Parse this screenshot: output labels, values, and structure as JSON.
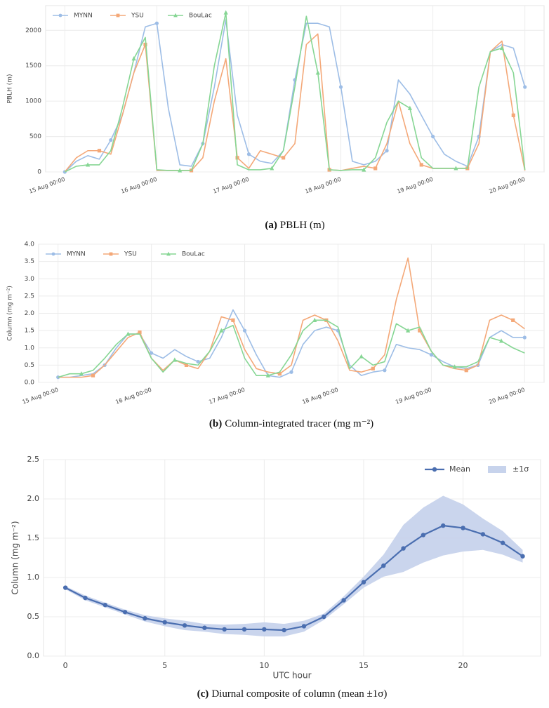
{
  "chart_data": [
    {
      "type": "line",
      "caption": "(a)",
      "caption_text": "PBLH (m)",
      "y_label": "PBLH (m)",
      "x": [
        "15 Aug 00:00",
        "15 Aug 03:00",
        "15 Aug 06:00",
        "15 Aug 09:00",
        "15 Aug 12:00",
        "15 Aug 15:00",
        "15 Aug 18:00",
        "15 Aug 21:00",
        "16 Aug 00:00",
        "16 Aug 03:00",
        "16 Aug 06:00",
        "16 Aug 09:00",
        "16 Aug 12:00",
        "16 Aug 15:00",
        "16 Aug 18:00",
        "16 Aug 21:00",
        "17 Aug 00:00",
        "17 Aug 03:00",
        "17 Aug 06:00",
        "17 Aug 09:00",
        "17 Aug 12:00",
        "17 Aug 15:00",
        "17 Aug 18:00",
        "17 Aug 21:00",
        "18 Aug 00:00",
        "18 Aug 03:00",
        "18 Aug 06:00",
        "18 Aug 09:00",
        "18 Aug 12:00",
        "18 Aug 15:00",
        "18 Aug 18:00",
        "18 Aug 21:00",
        "19 Aug 00:00",
        "19 Aug 03:00",
        "19 Aug 06:00",
        "19 Aug 09:00",
        "19 Aug 12:00",
        "19 Aug 15:00",
        "19 Aug 18:00",
        "19 Aug 21:00",
        "20 Aug 00:00"
      ],
      "xlim": [
        "14 Aug 19:00",
        "20 Aug 05:00"
      ],
      "xticks": [
        "15 Aug 00:00",
        "16 Aug 00:00",
        "17 Aug 00:00",
        "18 Aug 00:00",
        "19 Aug 00:00",
        "20 Aug 00:00"
      ],
      "ylim": [
        0,
        2350
      ],
      "yticks": [
        0,
        500,
        1000,
        1500,
        2000
      ],
      "grid": true,
      "legend": "upper left",
      "series": [
        {
          "name": "MYNN",
          "color": "#9dbde6",
          "marker": "circle",
          "values": [
            0,
            150,
            230,
            180,
            450,
            800,
            1400,
            2050,
            2100,
            900,
            100,
            80,
            400,
            1200,
            2150,
            800,
            250,
            150,
            120,
            300,
            1300,
            2100,
            2100,
            2050,
            1200,
            150,
            100,
            150,
            300,
            1300,
            1100,
            800,
            500,
            250,
            150,
            80,
            500,
            1700,
            1800,
            1750,
            1200
          ]
        },
        {
          "name": "YSU",
          "color": "#f4a878",
          "marker": "square",
          "values": [
            0,
            200,
            300,
            300,
            250,
            800,
            1400,
            1800,
            20,
            20,
            20,
            20,
            200,
            1000,
            1600,
            200,
            50,
            300,
            250,
            200,
            400,
            1800,
            1950,
            30,
            20,
            50,
            80,
            50,
            400,
            1000,
            400,
            100,
            50,
            50,
            50,
            50,
            400,
            1700,
            1850,
            800,
            20
          ]
        },
        {
          "name": "BouLac",
          "color": "#86d694",
          "marker": "triangle",
          "values": [
            0,
            80,
            100,
            100,
            300,
            900,
            1600,
            1900,
            30,
            20,
            20,
            20,
            400,
            1500,
            2250,
            100,
            30,
            30,
            50,
            300,
            1200,
            2200,
            1400,
            30,
            20,
            30,
            30,
            200,
            700,
            1000,
            900,
            200,
            50,
            50,
            50,
            50,
            1200,
            1700,
            1750,
            1400,
            30
          ]
        }
      ]
    },
    {
      "type": "line",
      "caption": "(b)",
      "caption_text": "Column-integrated tracer (mg m⁻²)",
      "y_label": "Column (mg m⁻²)",
      "x": [
        "15 Aug 00:00",
        "15 Aug 03:00",
        "15 Aug 06:00",
        "15 Aug 09:00",
        "15 Aug 12:00",
        "15 Aug 15:00",
        "15 Aug 18:00",
        "15 Aug 21:00",
        "16 Aug 00:00",
        "16 Aug 03:00",
        "16 Aug 06:00",
        "16 Aug 09:00",
        "16 Aug 12:00",
        "16 Aug 15:00",
        "16 Aug 18:00",
        "16 Aug 21:00",
        "17 Aug 00:00",
        "17 Aug 03:00",
        "17 Aug 06:00",
        "17 Aug 09:00",
        "17 Aug 12:00",
        "17 Aug 15:00",
        "17 Aug 18:00",
        "17 Aug 21:00",
        "18 Aug 00:00",
        "18 Aug 03:00",
        "18 Aug 06:00",
        "18 Aug 09:00",
        "18 Aug 12:00",
        "18 Aug 15:00",
        "18 Aug 18:00",
        "18 Aug 21:00",
        "19 Aug 00:00",
        "19 Aug 03:00",
        "19 Aug 06:00",
        "19 Aug 09:00",
        "19 Aug 12:00",
        "19 Aug 15:00",
        "19 Aug 18:00",
        "19 Aug 21:00",
        "20 Aug 00:00"
      ],
      "xlim": [
        "14 Aug 19:00",
        "20 Aug 05:00"
      ],
      "xticks": [
        "15 Aug 00:00",
        "16 Aug 00:00",
        "17 Aug 00:00",
        "18 Aug 00:00",
        "19 Aug 00:00",
        "20 Aug 00:00"
      ],
      "ylim": [
        0,
        4
      ],
      "yticks": [
        {
          "value": 0,
          "label": "0.0"
        },
        0.5,
        {
          "value": 1,
          "label": "1.0"
        },
        1.5,
        {
          "value": 2,
          "label": "2.0"
        },
        2.5,
        {
          "value": 3,
          "label": "3.0"
        },
        3.5,
        {
          "value": 4,
          "label": "4.0"
        }
      ],
      "grid": true,
      "legend": "upper left",
      "series": [
        {
          "name": "MYNN",
          "color": "#9dbde6",
          "marker": "circle",
          "values": [
            0.15,
            0.15,
            0.2,
            0.25,
            0.5,
            1.0,
            1.4,
            1.4,
            0.85,
            0.7,
            0.95,
            0.75,
            0.6,
            0.7,
            1.3,
            2.1,
            1.5,
            0.8,
            0.2,
            0.15,
            0.3,
            1.1,
            1.5,
            1.6,
            1.5,
            0.5,
            0.2,
            0.3,
            0.35,
            1.1,
            1.0,
            0.95,
            0.8,
            0.6,
            0.45,
            0.4,
            0.5,
            1.3,
            1.5,
            1.3,
            1.3
          ]
        },
        {
          "name": "YSU",
          "color": "#f4a878",
          "marker": "square",
          "values": [
            0.15,
            0.15,
            0.15,
            0.2,
            0.5,
            0.9,
            1.3,
            1.45,
            0.7,
            0.35,
            0.65,
            0.5,
            0.4,
            0.9,
            1.9,
            1.8,
            0.95,
            0.4,
            0.3,
            0.25,
            0.5,
            1.8,
            1.95,
            1.8,
            1.2,
            0.35,
            0.3,
            0.4,
            0.8,
            2.4,
            3.6,
            1.5,
            0.9,
            0.5,
            0.4,
            0.35,
            0.5,
            1.8,
            1.95,
            1.8,
            1.55
          ]
        },
        {
          "name": "BouLac",
          "color": "#86d694",
          "marker": "triangle",
          "values": [
            0.15,
            0.25,
            0.25,
            0.35,
            0.7,
            1.1,
            1.4,
            1.4,
            0.7,
            0.3,
            0.65,
            0.55,
            0.5,
            0.9,
            1.5,
            1.65,
            0.7,
            0.2,
            0.2,
            0.3,
            0.8,
            1.5,
            1.8,
            1.8,
            1.6,
            0.4,
            0.75,
            0.5,
            0.6,
            1.7,
            1.5,
            1.6,
            0.9,
            0.5,
            0.45,
            0.45,
            0.6,
            1.3,
            1.2,
            1.0,
            0.85
          ]
        }
      ]
    },
    {
      "type": "band-line",
      "caption": "(c)",
      "caption_text": "Diurnal composite of column (mean ±1σ)",
      "y_label": "Column (mg m⁻²)",
      "x_label": "UTC hour",
      "x": [
        0,
        1,
        2,
        3,
        4,
        5,
        6,
        7,
        8,
        9,
        10,
        11,
        12,
        13,
        14,
        15,
        16,
        17,
        18,
        19,
        20,
        21,
        22,
        23
      ],
      "xlim": [
        -1.1,
        23.9
      ],
      "xticks": [
        0,
        5,
        10,
        15,
        20
      ],
      "ylim": [
        0,
        2.5
      ],
      "yticks": [
        {
          "value": 0,
          "label": "0.0"
        },
        0.5,
        {
          "value": 1,
          "label": "1.0"
        },
        1.5,
        {
          "value": 2,
          "label": "2.0"
        },
        2.5
      ],
      "grid": true,
      "legend": "upper right",
      "series": [
        {
          "name": "Mean",
          "color": "#4a6eb0",
          "marker": "circle",
          "values": [
            0.87,
            0.74,
            0.65,
            0.56,
            0.48,
            0.43,
            0.39,
            0.36,
            0.34,
            0.34,
            0.34,
            0.33,
            0.38,
            0.5,
            0.71,
            0.94,
            1.15,
            1.37,
            1.54,
            1.66,
            1.63,
            1.55,
            1.44,
            1.27
          ]
        }
      ],
      "band": {
        "name": "±1σ",
        "color": "#c7d3ec",
        "values": [
          0.02,
          0.03,
          0.03,
          0.03,
          0.04,
          0.05,
          0.06,
          0.05,
          0.06,
          0.07,
          0.09,
          0.08,
          0.07,
          0.04,
          0.05,
          0.07,
          0.14,
          0.3,
          0.35,
          0.38,
          0.3,
          0.2,
          0.15,
          0.08
        ]
      }
    }
  ]
}
